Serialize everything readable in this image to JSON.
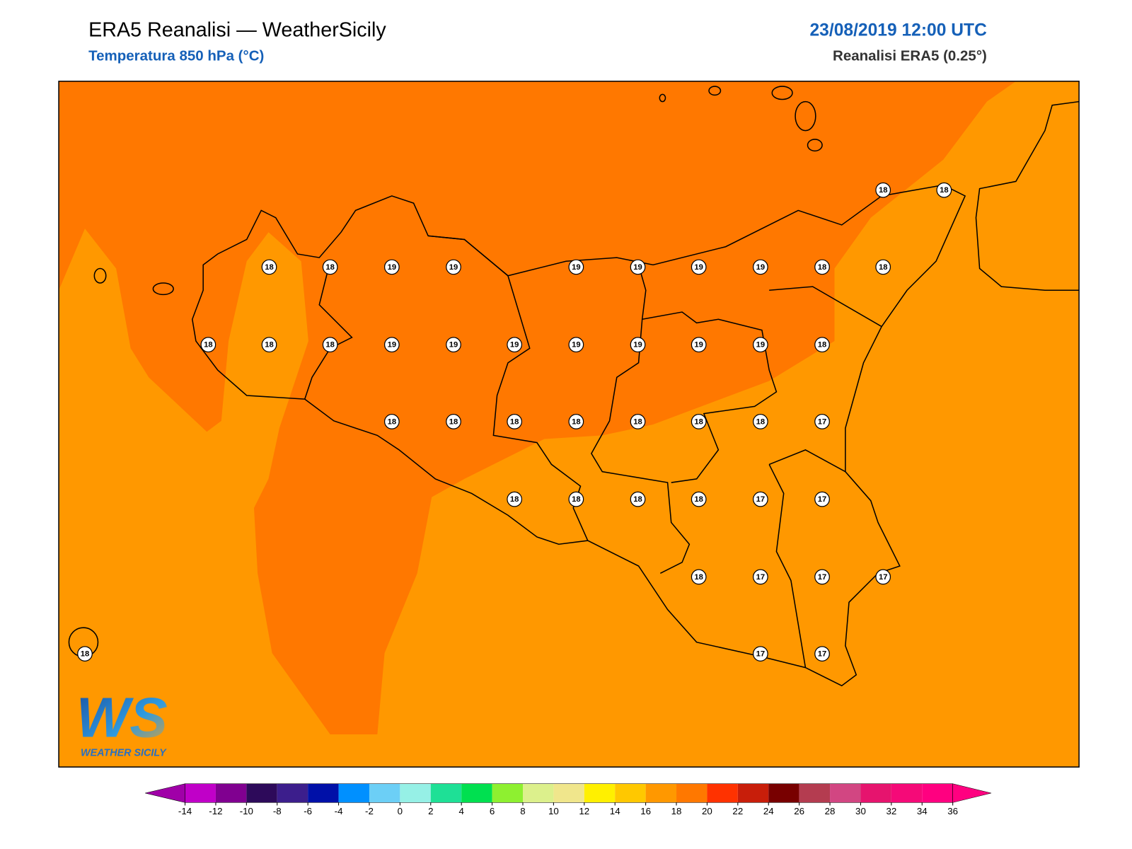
{
  "header": {
    "title": "ERA5 Reanalisi — WeatherSicily",
    "subtitle": "Temperatura 850 hPa (°C)",
    "datetime": "23/08/2019 12:00 UTC",
    "source": "Reanalisi ERA5 (0.25°)"
  },
  "map": {
    "stations": [
      18,
      18,
      18,
      18,
      19,
      19,
      19,
      19,
      19,
      19,
      18,
      18,
      18,
      18,
      18,
      19,
      19,
      19,
      19,
      19,
      19,
      19,
      18,
      18,
      18,
      18,
      18,
      18,
      18,
      18,
      17,
      18,
      18,
      18,
      18,
      17,
      17,
      18,
      17,
      17,
      17,
      18,
      17,
      17
    ]
  },
  "logo": {
    "mark": "WS",
    "name": "WEATHER SICILY"
  },
  "colorbar": {
    "ticks": [
      -14,
      -12,
      -10,
      -8,
      -6,
      -4,
      -2,
      0,
      2,
      4,
      6,
      8,
      10,
      12,
      14,
      16,
      18,
      20,
      22,
      24,
      26,
      28,
      30,
      32,
      34,
      36
    ],
    "colors": [
      "#a000a8",
      "#c000c8",
      "#800090",
      "#2d0a5a",
      "#3c1e8c",
      "#0010a8",
      "#0090ff",
      "#6ccff6",
      "#96f0e6",
      "#1ee096",
      "#00e050",
      "#8ef030",
      "#dcf08c",
      "#f0e68c",
      "#fff000",
      "#ffc800",
      "#ff9800",
      "#ff7800",
      "#ff3200",
      "#c81e0a",
      "#780000",
      "#b43c50",
      "#d24682",
      "#e6146e",
      "#f50a78",
      "#ff0080",
      "#ff0080"
    ]
  }
}
